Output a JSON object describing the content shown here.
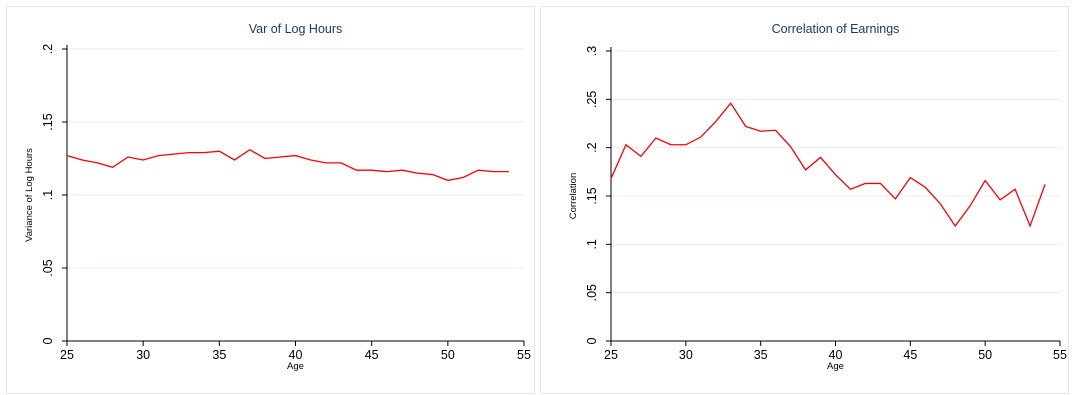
{
  "chart_data": [
    {
      "type": "line",
      "title": "Var of Log Hours",
      "xlabel": "Age",
      "ylabel": "Variance of Log Hours",
      "xlim": [
        25,
        55
      ],
      "ylim": [
        0,
        0.2
      ],
      "xticks": [
        25,
        30,
        35,
        40,
        45,
        50,
        55
      ],
      "xtick_labels": [
        "25",
        "30",
        "35",
        "40",
        "45",
        "50",
        "55"
      ],
      "yticks": [
        0,
        0.05,
        0.1,
        0.15,
        0.2
      ],
      "ytick_labels": [
        "0",
        ".05",
        ".1",
        ".15",
        ".2"
      ],
      "grid": true,
      "x": [
        25,
        26,
        27,
        28,
        29,
        30,
        31,
        32,
        33,
        34,
        35,
        36,
        37,
        38,
        39,
        40,
        41,
        42,
        43,
        44,
        45,
        46,
        47,
        48,
        49,
        50,
        51,
        52,
        53,
        54
      ],
      "series": [
        {
          "values": [
            0.127,
            0.124,
            0.122,
            0.119,
            0.126,
            0.124,
            0.127,
            0.128,
            0.129,
            0.129,
            0.13,
            0.124,
            0.131,
            0.125,
            0.126,
            0.127,
            0.124,
            0.122,
            0.122,
            0.117,
            0.117,
            0.116,
            0.117,
            0.115,
            0.114,
            0.11,
            0.112,
            0.117,
            0.116,
            0.116
          ]
        }
      ],
      "color": "#ff0000"
    },
    {
      "type": "line",
      "title": "Correlation of Earnings",
      "xlabel": "Age",
      "ylabel": "Correlation",
      "xlim": [
        25,
        55
      ],
      "ylim": [
        0,
        0.3
      ],
      "xticks": [
        25,
        30,
        35,
        40,
        45,
        50,
        55
      ],
      "xtick_labels": [
        "25",
        "30",
        "35",
        "40",
        "45",
        "50",
        "55"
      ],
      "yticks": [
        0,
        0.05,
        0.1,
        0.15,
        0.2,
        0.25,
        0.3
      ],
      "ytick_labels": [
        "0",
        ".05",
        ".1",
        ".15",
        ".2",
        ".25",
        ".3"
      ],
      "grid": true,
      "x": [
        25,
        26,
        27,
        28,
        29,
        30,
        31,
        32,
        33,
        34,
        35,
        36,
        37,
        38,
        39,
        40,
        41,
        42,
        43,
        44,
        45,
        46,
        47,
        48,
        49,
        50,
        51,
        52,
        53,
        54
      ],
      "series": [
        {
          "values": [
            0.168,
            0.203,
            0.191,
            0.21,
            0.203,
            0.203,
            0.211,
            0.227,
            0.246,
            0.222,
            0.217,
            0.218,
            0.201,
            0.177,
            0.19,
            0.172,
            0.157,
            0.163,
            0.163,
            0.147,
            0.169,
            0.159,
            0.142,
            0.119,
            0.14,
            0.166,
            0.146,
            0.157,
            0.119,
            0.162
          ]
        }
      ],
      "color": "#ff0000"
    }
  ]
}
